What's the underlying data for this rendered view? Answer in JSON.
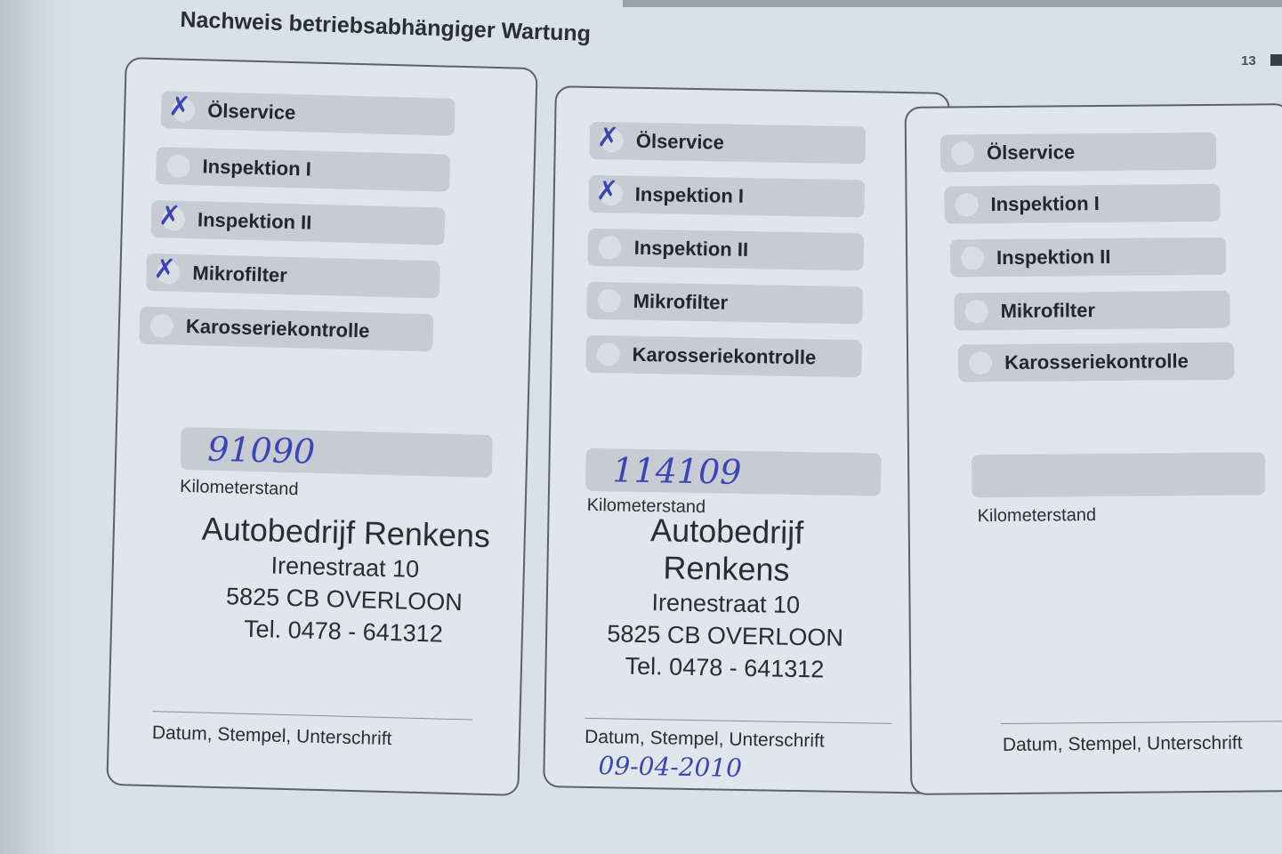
{
  "page": {
    "title": "Nachweis betriebsabhängiger Wartung",
    "page_number": "13"
  },
  "colors": {
    "ink": "#3c45b8",
    "pill": "#c6ccd1",
    "paper": "#dfe6ec"
  },
  "cards": [
    {
      "items": [
        {
          "label": "Ölservice",
          "checked": true,
          "mark": "✗"
        },
        {
          "label": "Inspektion I",
          "checked": false,
          "mark": ""
        },
        {
          "label": "Inspektion II",
          "checked": true,
          "mark": "✗"
        },
        {
          "label": "Mikrofilter",
          "checked": true,
          "mark": "✗"
        },
        {
          "label": "Karosseriekontrolle",
          "checked": false,
          "mark": ""
        }
      ],
      "km_value": "91090",
      "km_label": "Kilometerstand",
      "stamp": {
        "name": "Autobedrijf Renkens",
        "street": "Irenestraat 10",
        "city": "5825 CB  OVERLOON",
        "phone": "Tel. 0478 - 641312"
      },
      "signature_label": "Datum, Stempel, Unterschrift",
      "date": ""
    },
    {
      "items": [
        {
          "label": "Ölservice",
          "checked": true,
          "mark": "✗"
        },
        {
          "label": "Inspektion I",
          "checked": true,
          "mark": "✗"
        },
        {
          "label": "Inspektion II",
          "checked": false,
          "mark": ""
        },
        {
          "label": "Mikrofilter",
          "checked": false,
          "mark": ""
        },
        {
          "label": "Karosseriekontrolle",
          "checked": false,
          "mark": ""
        }
      ],
      "km_value": "114109",
      "km_label": "Kilometerstand",
      "stamp": {
        "name": "Autobedrijf Renkens",
        "street": "Irenestraat 10",
        "city": "5825 CB  OVERLOON",
        "phone": "Tel. 0478 - 641312"
      },
      "signature_label": "Datum, Stempel, Unterschrift",
      "date": "09-04-2010"
    },
    {
      "items": [
        {
          "label": "Ölservice",
          "checked": false,
          "mark": ""
        },
        {
          "label": "Inspektion I",
          "checked": false,
          "mark": ""
        },
        {
          "label": "Inspektion II",
          "checked": false,
          "mark": ""
        },
        {
          "label": "Mikrofilter",
          "checked": false,
          "mark": ""
        },
        {
          "label": "Karosseriekontrolle",
          "checked": false,
          "mark": ""
        }
      ],
      "km_value": "",
      "km_label": "Kilometerstand",
      "signature_label": "Datum, Stempel, Unterschrift",
      "date": ""
    }
  ]
}
